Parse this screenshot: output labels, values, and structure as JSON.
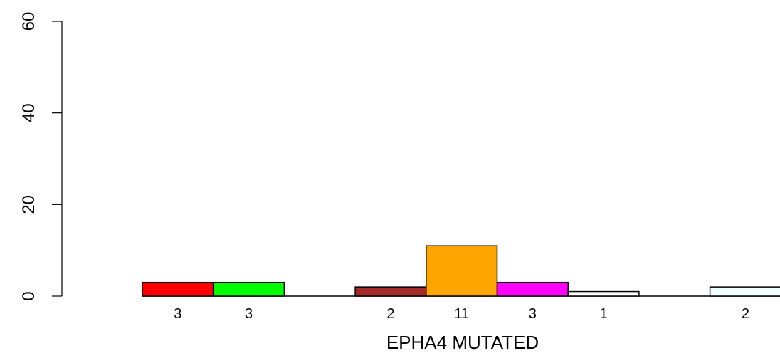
{
  "chart_data": {
    "type": "bar",
    "xlabel": "EPHA4 MUTATED",
    "ylabel": "",
    "title": "",
    "ylim": [
      0,
      60
    ],
    "yticks": [
      0,
      20,
      40,
      60
    ],
    "grid": false,
    "bars": [
      {
        "slot": 0,
        "value": 3,
        "label": "3",
        "color": "#ff0000"
      },
      {
        "slot": 1,
        "value": 3,
        "label": "3",
        "color": "#00ff00"
      },
      {
        "slot": 3,
        "value": 2,
        "label": "2",
        "color": "#a52a2a"
      },
      {
        "slot": 4,
        "value": 11,
        "label": "11",
        "color": "#ffa500"
      },
      {
        "slot": 5,
        "value": 3,
        "label": "3",
        "color": "#ff00ff"
      },
      {
        "slot": 6,
        "value": 1,
        "label": "1",
        "color": "#fffafa"
      },
      {
        "slot": 8,
        "value": 2,
        "label": "2",
        "color": "#f0ffff"
      }
    ]
  }
}
